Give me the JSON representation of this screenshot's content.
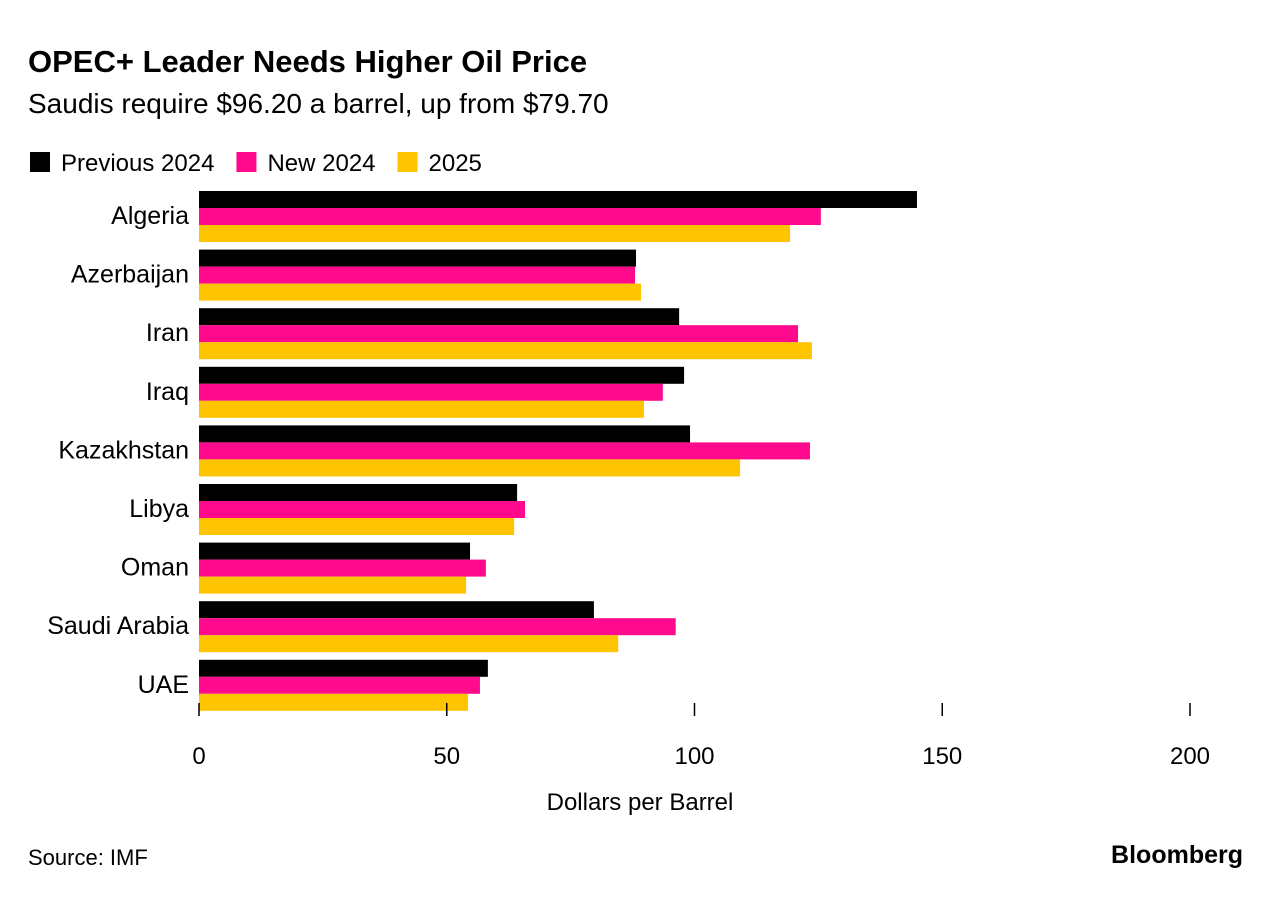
{
  "chart_data": {
    "type": "bar",
    "orientation": "horizontal",
    "title": "OPEC+ Leader Needs Higher Oil Price",
    "subtitle": "Saudis require $96.20 a barrel, up from $79.70",
    "xlabel": "Dollars per Barrel",
    "ylabel": "",
    "xlim": [
      0,
      200
    ],
    "xticks": [
      "0",
      "50",
      "100",
      "150",
      "200"
    ],
    "grid": false,
    "legend_position": "top-left",
    "categories": [
      "Algeria",
      "Azerbaijan",
      "Iran",
      "Iraq",
      "Kazakhstan",
      "Libya",
      "Oman",
      "Saudi Arabia",
      "UAE"
    ],
    "series": [
      {
        "name": "Previous 2024",
        "color": "#000000",
        "values": [
          144.9,
          88.2,
          96.9,
          97.9,
          99.1,
          64.2,
          54.7,
          79.7,
          58.3
        ]
      },
      {
        "name": "New 2024",
        "color": "#ff0a8c",
        "values": [
          125.5,
          88.0,
          120.9,
          93.6,
          123.3,
          65.8,
          57.9,
          96.2,
          56.7
        ]
      },
      {
        "name": "2025",
        "color": "#ffc400",
        "values": [
          119.3,
          89.2,
          123.7,
          89.8,
          109.2,
          63.6,
          53.9,
          84.6,
          54.3
        ]
      }
    ],
    "source": "Source: IMF",
    "brand": "Bloomberg"
  }
}
